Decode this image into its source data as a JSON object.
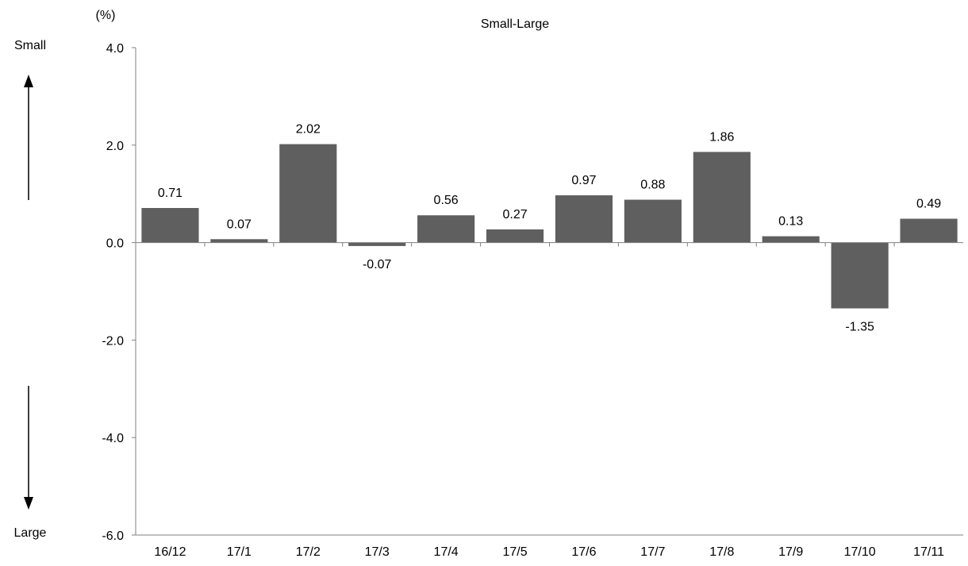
{
  "chart_data": {
    "type": "bar",
    "title": "Small-Large",
    "unit_label": "(%)",
    "direction_labels": {
      "top": "Small",
      "bottom": "Large"
    },
    "categories": [
      "16/12",
      "17/1",
      "17/2",
      "17/3",
      "17/4",
      "17/5",
      "17/6",
      "17/7",
      "17/8",
      "17/9",
      "17/10",
      "17/11"
    ],
    "values": [
      0.71,
      0.07,
      2.02,
      -0.07,
      0.56,
      0.27,
      0.97,
      0.88,
      1.86,
      0.13,
      -1.35,
      0.49
    ],
    "value_labels": [
      "0.71",
      "0.07",
      "2.02",
      "-0.07",
      "0.56",
      "0.27",
      "0.97",
      "0.88",
      "1.86",
      "0.13",
      "-1.35",
      "0.49"
    ],
    "ylim": [
      -6.0,
      4.0
    ],
    "yticks": [
      4.0,
      2.0,
      0.0,
      -2.0,
      -4.0,
      -6.0
    ],
    "ytick_labels": [
      "4.0",
      "2.0",
      "0.0",
      "-2.0",
      "-4.0",
      "-6.0"
    ],
    "bar_color": "#5f5f5f",
    "grid": false,
    "legend": "none"
  }
}
